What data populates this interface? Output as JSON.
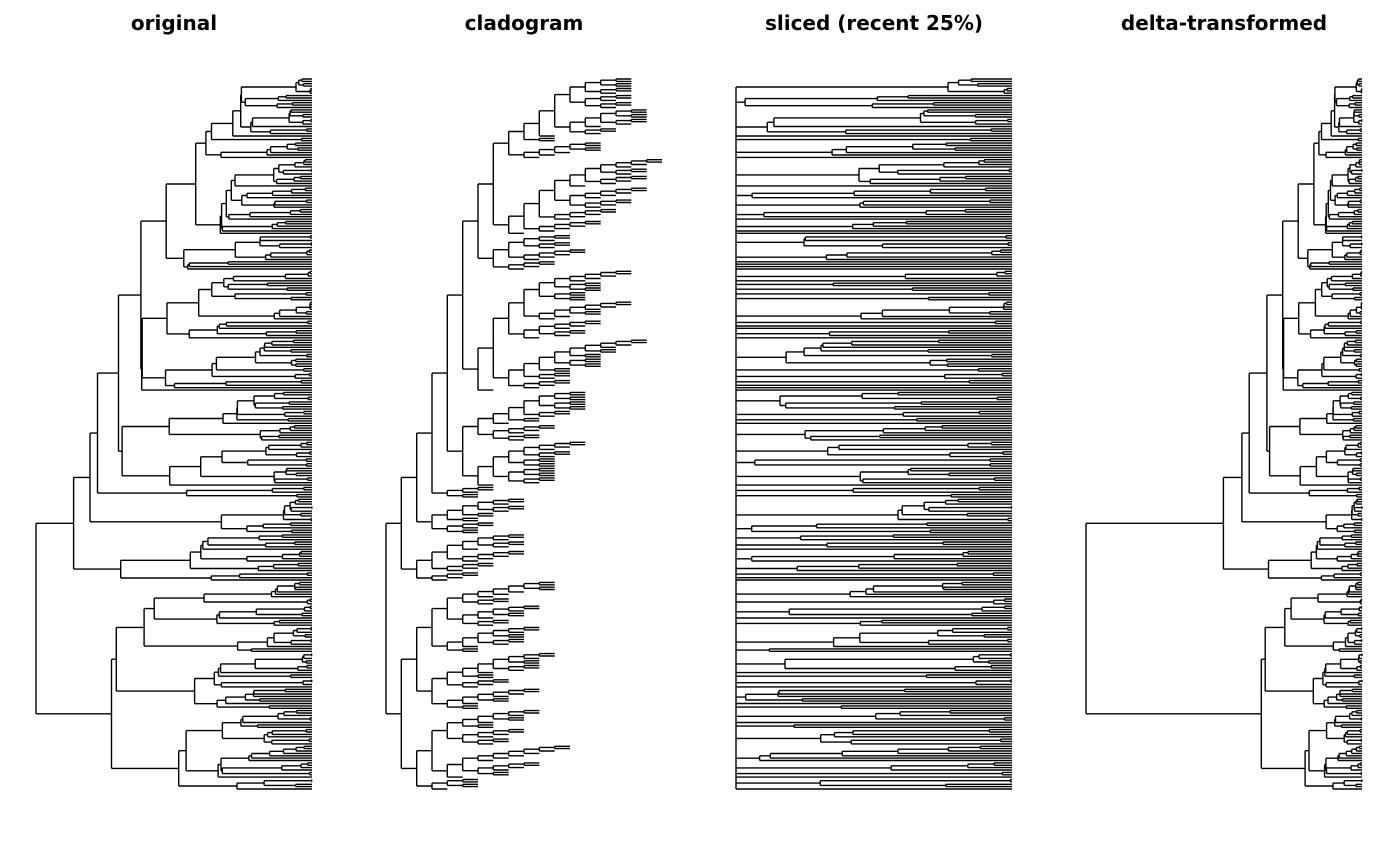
{
  "figure_title": "",
  "chart_data": {
    "type": "phylogenetic-tree-panels",
    "description": "Four horizontal rectangular phylogenies of the same ladderized ultrametric tree under different branch-length transforms; root at left, tips at right, no axes or frames.",
    "panels": [
      {
        "id": "original",
        "title": "original",
        "transform": "original"
      },
      {
        "id": "cladogram",
        "title": "cladogram",
        "transform": "cladogram"
      },
      {
        "id": "sliced",
        "title": "sliced (recent 25%)",
        "transform": "slice",
        "slice_recent_fraction": 0.25
      },
      {
        "id": "delta",
        "title": "delta-transformed",
        "transform": "delta",
        "delta_exponent": 0.35
      }
    ],
    "tree": {
      "model": "yule",
      "n_tips": 300,
      "seed": 20,
      "ultrametric": true,
      "ladderized": "larger-clade-on-top",
      "root_position": "bottom-left"
    },
    "style": {
      "line_color": "#000000",
      "background": "#ffffff",
      "line_width": 1.4,
      "title_color": "#000000"
    },
    "layout_hints": {
      "orientation": "horizontal, tips rightward",
      "axes": "none",
      "gridlines": "off",
      "legend": "none"
    }
  }
}
